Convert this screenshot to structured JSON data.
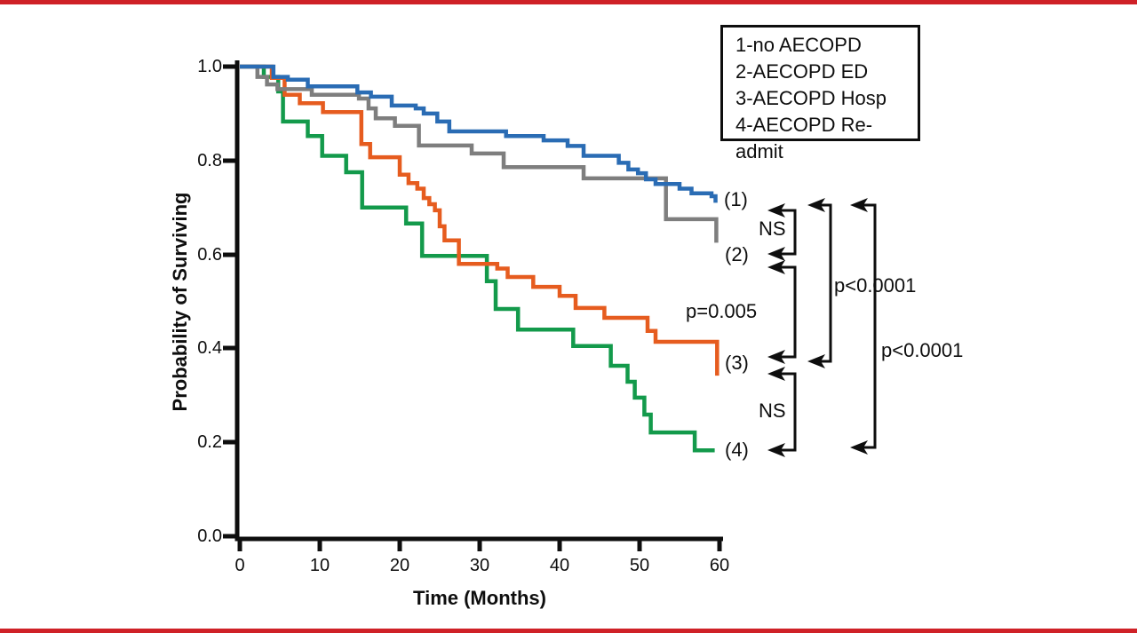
{
  "page": {
    "rule_color": "#cf2127",
    "background": "#ffffff",
    "text_color": "#0e0e0e"
  },
  "chart_data": {
    "type": "line",
    "subtype": "kaplan-meier-step",
    "title": "",
    "xlabel": "Time (Months)",
    "ylabel": "Probability of Surviving",
    "xlim": [
      0,
      60
    ],
    "ylim": [
      0.0,
      1.0
    ],
    "grid": false,
    "xticks": [
      "0",
      "10",
      "20",
      "30",
      "40",
      "50",
      "60"
    ],
    "yticks": [
      "1.0",
      "0.8",
      "0.6",
      "0.4",
      "0.2",
      "0.0"
    ],
    "legend": {
      "position": "top-right",
      "items": [
        "1-no AECOPD",
        "2-AECOPD ED",
        "3-AECOPD Hosp",
        "4-AECOPD Re-admit"
      ]
    },
    "series": [
      {
        "name": "1-no AECOPD",
        "color": "#2a6cb4",
        "points": [
          [
            0,
            1.0
          ],
          [
            4.2,
            0.978
          ],
          [
            6,
            0.972
          ],
          [
            8.5,
            0.958
          ],
          [
            14.7,
            0.945
          ],
          [
            16.4,
            0.936
          ],
          [
            19,
            0.917
          ],
          [
            22,
            0.911
          ],
          [
            23,
            0.9
          ],
          [
            24.7,
            0.883
          ],
          [
            26.2,
            0.862
          ],
          [
            33.3,
            0.852
          ],
          [
            38,
            0.843
          ],
          [
            41,
            0.831
          ],
          [
            43,
            0.81
          ],
          [
            47.4,
            0.795
          ],
          [
            48.6,
            0.781
          ],
          [
            49.8,
            0.773
          ],
          [
            50.8,
            0.76
          ],
          [
            52,
            0.75
          ],
          [
            55,
            0.74
          ],
          [
            56.5,
            0.73
          ],
          [
            59,
            0.724
          ],
          [
            59.5,
            0.71
          ]
        ]
      },
      {
        "name": "2-AECOPD ED",
        "color": "#7e7e7e",
        "points": [
          [
            0,
            1.0
          ],
          [
            2.2,
            0.978
          ],
          [
            3.4,
            0.962
          ],
          [
            4.7,
            0.952
          ],
          [
            9,
            0.94
          ],
          [
            14.9,
            0.932
          ],
          [
            16.1,
            0.911
          ],
          [
            17,
            0.89
          ],
          [
            19.4,
            0.874
          ],
          [
            22.4,
            0.832
          ],
          [
            29,
            0.815
          ],
          [
            33,
            0.786
          ],
          [
            43,
            0.762
          ],
          [
            53.3,
            0.675
          ],
          [
            59.6,
            0.625
          ]
        ]
      },
      {
        "name": "3-AECOPD Hosp",
        "color": "#e65c1f",
        "points": [
          [
            0,
            1.0
          ],
          [
            4,
            0.976
          ],
          [
            5.6,
            0.94
          ],
          [
            7.5,
            0.922
          ],
          [
            10.4,
            0.903
          ],
          [
            15.2,
            0.835
          ],
          [
            16.3,
            0.807
          ],
          [
            20,
            0.77
          ],
          [
            21.1,
            0.752
          ],
          [
            22.2,
            0.74
          ],
          [
            23,
            0.72
          ],
          [
            23.7,
            0.707
          ],
          [
            24.4,
            0.694
          ],
          [
            25,
            0.66
          ],
          [
            25.6,
            0.63
          ],
          [
            27.4,
            0.58
          ],
          [
            32.2,
            0.57
          ],
          [
            33.5,
            0.552
          ],
          [
            36.7,
            0.531
          ],
          [
            40,
            0.512
          ],
          [
            42,
            0.486
          ],
          [
            45.6,
            0.465
          ],
          [
            51,
            0.437
          ],
          [
            52,
            0.414
          ],
          [
            59.7,
            0.342
          ]
        ]
      },
      {
        "name": "4-AECOPD Re-admit",
        "color": "#139a4b",
        "points": [
          [
            0,
            1.0
          ],
          [
            3,
            0.978
          ],
          [
            4.8,
            0.947
          ],
          [
            5.4,
            0.883
          ],
          [
            8.5,
            0.852
          ],
          [
            10.3,
            0.81
          ],
          [
            13.3,
            0.775
          ],
          [
            15.3,
            0.7
          ],
          [
            20.8,
            0.666
          ],
          [
            22.8,
            0.597
          ],
          [
            30.9,
            0.543
          ],
          [
            32,
            0.484
          ],
          [
            34.8,
            0.44
          ],
          [
            41.7,
            0.405
          ],
          [
            46.4,
            0.363
          ],
          [
            48.5,
            0.329
          ],
          [
            49.4,
            0.295
          ],
          [
            50.6,
            0.259
          ],
          [
            51.4,
            0.221
          ],
          [
            56.9,
            0.183
          ],
          [
            59.4,
            0.183
          ]
        ]
      }
    ],
    "curve_end_labels": [
      "(1)",
      "(2)",
      "(3)",
      "(4)"
    ],
    "comparisons": [
      {
        "groups": "1 vs 2",
        "label": "NS"
      },
      {
        "groups": "2 vs 3",
        "label": "p=0.005"
      },
      {
        "groups": "1 vs 3",
        "label": "p<0.0001"
      },
      {
        "groups": "1 vs 4",
        "label": "p<0.0001"
      },
      {
        "groups": "3 vs 4",
        "label": "NS"
      }
    ]
  }
}
